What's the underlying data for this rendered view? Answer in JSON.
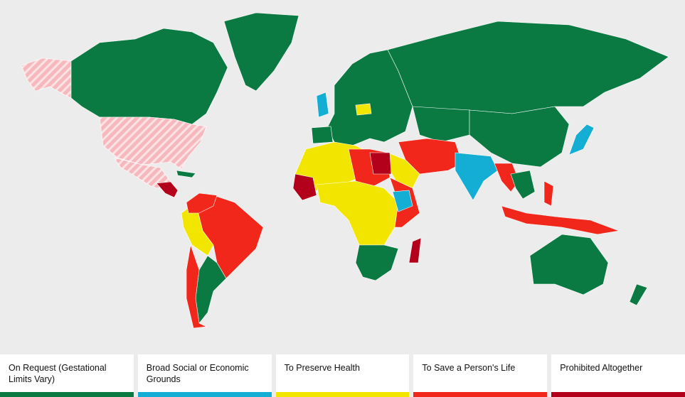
{
  "legend": {
    "items": [
      {
        "label": "On Request (Gestational Limits Vary)",
        "color": "#0a7a42"
      },
      {
        "label": "Broad Social or Economic Grounds",
        "color": "#14aed4"
      },
      {
        "label": "To Preserve Health",
        "color": "#f2e500"
      },
      {
        "label": "To Save a Person's Life",
        "color": "#f2271b"
      },
      {
        "label": "Prohibited Altogether",
        "color": "#b3001b"
      }
    ]
  }
}
